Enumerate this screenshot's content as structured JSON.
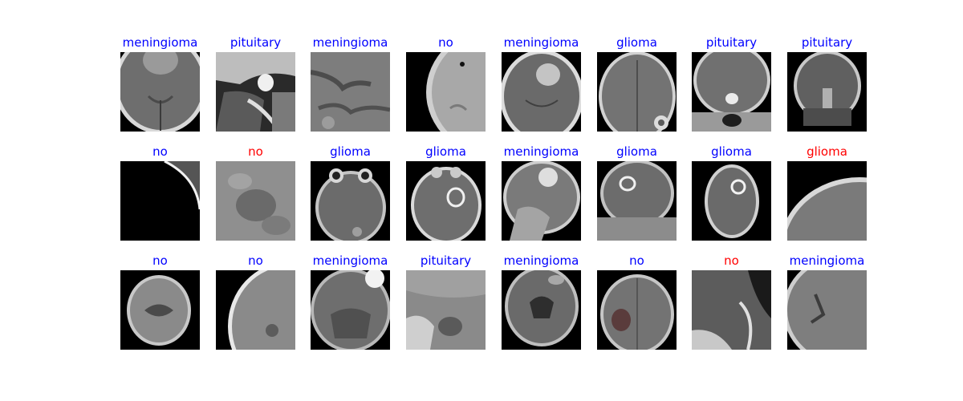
{
  "figure": {
    "colors": {
      "correct": "#0000ff",
      "incorrect": "#ff0000"
    },
    "cells": [
      {
        "label": "meningioma",
        "status": "correct",
        "scan": "axial-tumor-top",
        "image_icon": "brain-mri-icon"
      },
      {
        "label": "pituitary",
        "status": "correct",
        "scan": "sagittal-closeup",
        "image_icon": "brain-mri-icon"
      },
      {
        "label": "meningioma",
        "status": "correct",
        "scan": "gray-closeup",
        "image_icon": "brain-mri-icon"
      },
      {
        "label": "no",
        "status": "correct",
        "scan": "skull-edge-bright",
        "image_icon": "brain-mri-icon"
      },
      {
        "label": "meningioma",
        "status": "correct",
        "scan": "axial-tumor-center",
        "image_icon": "brain-mri-icon"
      },
      {
        "label": "glioma",
        "status": "correct",
        "scan": "axial-lesion-lower",
        "image_icon": "brain-mri-icon"
      },
      {
        "label": "pituitary",
        "status": "correct",
        "scan": "coronal-pituitary",
        "image_icon": "brain-mri-icon"
      },
      {
        "label": "pituitary",
        "status": "correct",
        "scan": "coronal-dark",
        "image_icon": "brain-mri-icon"
      },
      {
        "label": "no",
        "status": "correct",
        "scan": "dark-arc",
        "image_icon": "brain-mri-icon"
      },
      {
        "label": "no",
        "status": "incorrect",
        "scan": "noisy-gray",
        "image_icon": "brain-mri-icon"
      },
      {
        "label": "glioma",
        "status": "correct",
        "scan": "axial-eyes",
        "image_icon": "brain-mri-icon"
      },
      {
        "label": "glioma",
        "status": "correct",
        "scan": "axial-ring-lesion",
        "image_icon": "brain-mri-icon"
      },
      {
        "label": "meningioma",
        "status": "correct",
        "scan": "sagittal-tumor",
        "image_icon": "brain-mri-icon"
      },
      {
        "label": "glioma",
        "status": "correct",
        "scan": "coronal-ring",
        "image_icon": "brain-mri-icon"
      },
      {
        "label": "glioma",
        "status": "correct",
        "scan": "axial-narrow-ring",
        "image_icon": "brain-mri-icon"
      },
      {
        "label": "glioma",
        "status": "incorrect",
        "scan": "edge-closeup",
        "image_icon": "brain-mri-icon"
      },
      {
        "label": "no",
        "status": "correct",
        "scan": "axial-small",
        "image_icon": "brain-mri-icon"
      },
      {
        "label": "no",
        "status": "correct",
        "scan": "ct-closeup",
        "image_icon": "brain-mri-icon"
      },
      {
        "label": "meningioma",
        "status": "correct",
        "scan": "axial-cerebellum",
        "image_icon": "brain-mri-icon"
      },
      {
        "label": "pituitary",
        "status": "correct",
        "scan": "noisy-sagittal",
        "image_icon": "brain-mri-icon"
      },
      {
        "label": "meningioma",
        "status": "correct",
        "scan": "axial-ventricles",
        "image_icon": "brain-mri-icon"
      },
      {
        "label": "no",
        "status": "correct",
        "scan": "axial-dark-lesion",
        "image_icon": "brain-mri-icon"
      },
      {
        "label": "no",
        "status": "incorrect",
        "scan": "sagittal-dark",
        "image_icon": "brain-mri-icon"
      },
      {
        "label": "meningioma",
        "status": "correct",
        "scan": "closeup-ventricle",
        "image_icon": "brain-mri-icon"
      }
    ]
  }
}
